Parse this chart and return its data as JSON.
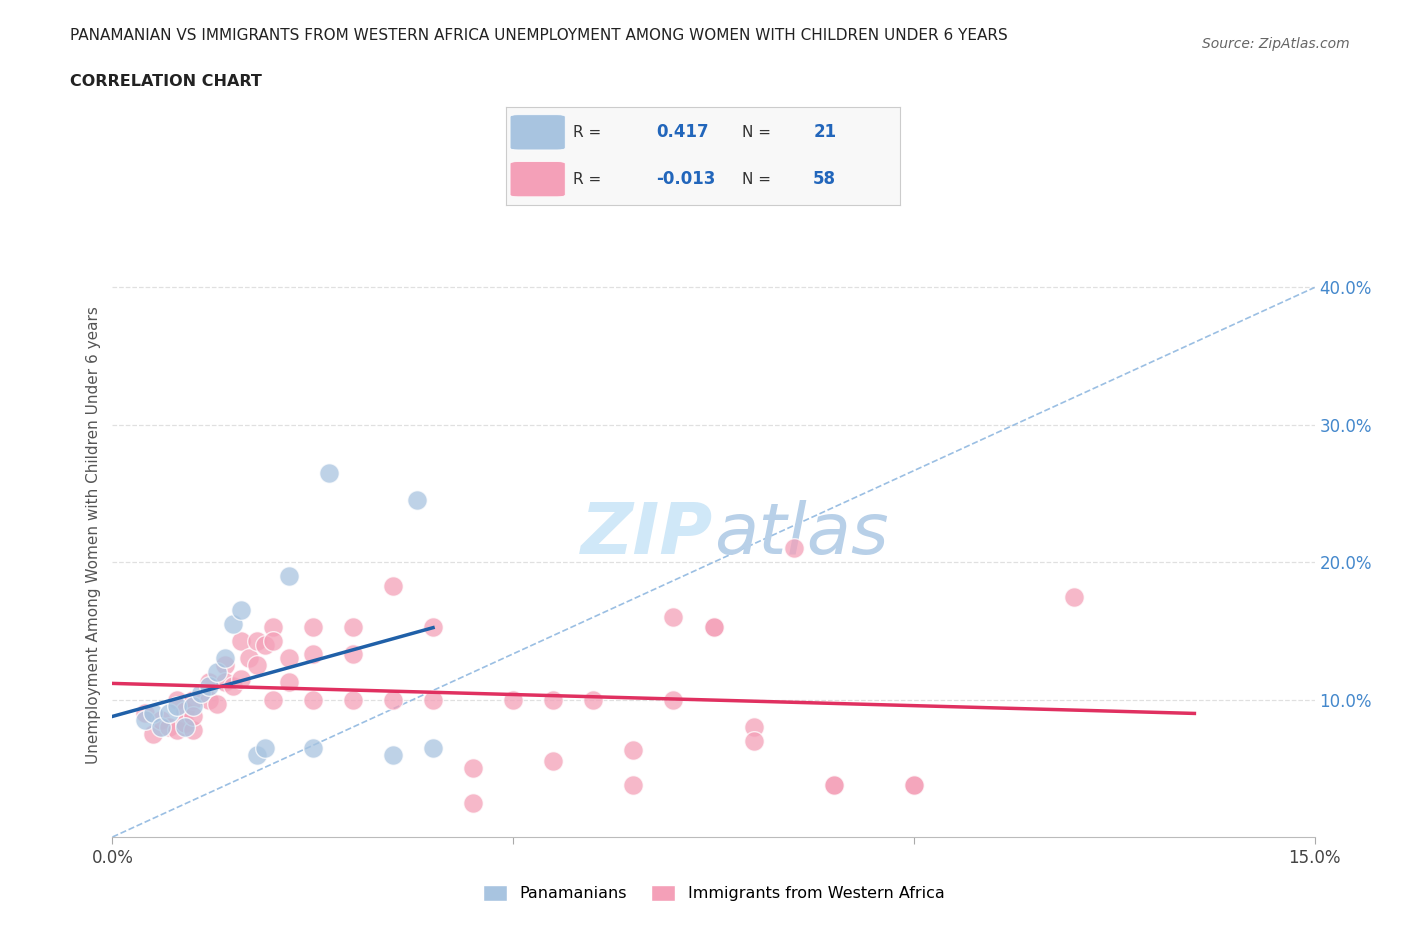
{
  "title_line1": "PANAMANIAN VS IMMIGRANTS FROM WESTERN AFRICA UNEMPLOYMENT AMONG WOMEN WITH CHILDREN UNDER 6 YEARS",
  "title_line2": "CORRELATION CHART",
  "source": "Source: ZipAtlas.com",
  "ylabel": "Unemployment Among Women with Children Under 6 years",
  "xlim": [
    0,
    0.15
  ],
  "ylim": [
    0,
    0.44
  ],
  "xticks": [
    0.0,
    0.05,
    0.1,
    0.15
  ],
  "xticklabels": [
    "0.0%",
    "",
    "",
    "15.0%"
  ],
  "yticks_right": [
    0.1,
    0.2,
    0.3,
    0.4
  ],
  "yticklabels_right": [
    "10.0%",
    "20.0%",
    "30.0%",
    "40.0%"
  ],
  "R_blue": 0.417,
  "N_blue": 21,
  "R_pink": -0.013,
  "N_pink": 58,
  "blue_color": "#a8c4e0",
  "blue_line_color": "#2060a8",
  "pink_color": "#f4a0b8",
  "pink_line_color": "#e03060",
  "diag_line_color": "#90b8e0",
  "watermark_color": "#d0e8f8",
  "blue_scatter": [
    [
      0.004,
      0.085
    ],
    [
      0.005,
      0.09
    ],
    [
      0.006,
      0.08
    ],
    [
      0.007,
      0.09
    ],
    [
      0.008,
      0.095
    ],
    [
      0.009,
      0.08
    ],
    [
      0.01,
      0.095
    ],
    [
      0.011,
      0.105
    ],
    [
      0.012,
      0.11
    ],
    [
      0.013,
      0.12
    ],
    [
      0.014,
      0.13
    ],
    [
      0.015,
      0.155
    ],
    [
      0.016,
      0.165
    ],
    [
      0.018,
      0.06
    ],
    [
      0.019,
      0.065
    ],
    [
      0.022,
      0.19
    ],
    [
      0.025,
      0.065
    ],
    [
      0.027,
      0.265
    ],
    [
      0.038,
      0.245
    ],
    [
      0.035,
      0.06
    ],
    [
      0.04,
      0.065
    ]
  ],
  "pink_scatter": [
    [
      0.004,
      0.09
    ],
    [
      0.005,
      0.075
    ],
    [
      0.006,
      0.085
    ],
    [
      0.007,
      0.08
    ],
    [
      0.008,
      0.1
    ],
    [
      0.008,
      0.078
    ],
    [
      0.009,
      0.092
    ],
    [
      0.009,
      0.083
    ],
    [
      0.01,
      0.1
    ],
    [
      0.01,
      0.078
    ],
    [
      0.01,
      0.088
    ],
    [
      0.012,
      0.113
    ],
    [
      0.012,
      0.1
    ],
    [
      0.013,
      0.097
    ],
    [
      0.014,
      0.125
    ],
    [
      0.014,
      0.113
    ],
    [
      0.015,
      0.11
    ],
    [
      0.016,
      0.143
    ],
    [
      0.016,
      0.115
    ],
    [
      0.017,
      0.13
    ],
    [
      0.018,
      0.143
    ],
    [
      0.018,
      0.125
    ],
    [
      0.019,
      0.14
    ],
    [
      0.02,
      0.1
    ],
    [
      0.02,
      0.153
    ],
    [
      0.02,
      0.143
    ],
    [
      0.022,
      0.13
    ],
    [
      0.022,
      0.113
    ],
    [
      0.025,
      0.153
    ],
    [
      0.025,
      0.133
    ],
    [
      0.025,
      0.1
    ],
    [
      0.03,
      0.1
    ],
    [
      0.03,
      0.153
    ],
    [
      0.03,
      0.133
    ],
    [
      0.035,
      0.1
    ],
    [
      0.035,
      0.183
    ],
    [
      0.04,
      0.1
    ],
    [
      0.04,
      0.153
    ],
    [
      0.045,
      0.05
    ],
    [
      0.045,
      0.025
    ],
    [
      0.05,
      0.1
    ],
    [
      0.055,
      0.1
    ],
    [
      0.055,
      0.055
    ],
    [
      0.06,
      0.1
    ],
    [
      0.065,
      0.038
    ],
    [
      0.065,
      0.063
    ],
    [
      0.07,
      0.16
    ],
    [
      0.07,
      0.1
    ],
    [
      0.075,
      0.153
    ],
    [
      0.075,
      0.153
    ],
    [
      0.08,
      0.08
    ],
    [
      0.08,
      0.07
    ],
    [
      0.085,
      0.21
    ],
    [
      0.09,
      0.038
    ],
    [
      0.09,
      0.038
    ],
    [
      0.1,
      0.038
    ],
    [
      0.1,
      0.038
    ],
    [
      0.12,
      0.175
    ]
  ],
  "grid_color": "#e0e0e0",
  "bg_color": "#ffffff",
  "legend_box_color": "#f8f8f8",
  "legend_border_color": "#cccccc"
}
